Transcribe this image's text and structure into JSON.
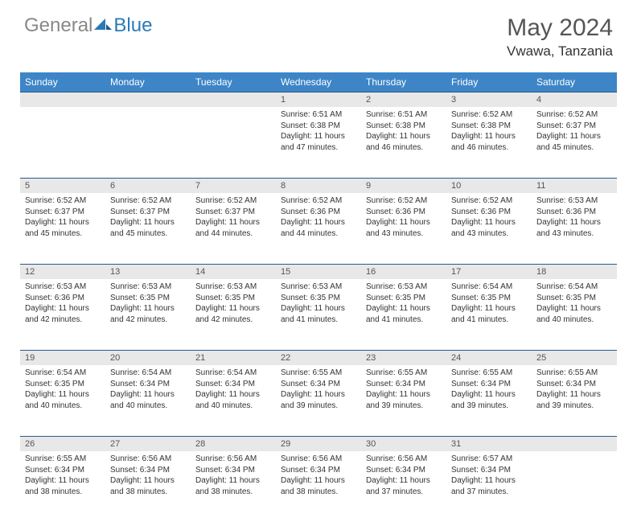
{
  "brand": {
    "part1": "General",
    "part2": "Blue"
  },
  "title": "May 2024",
  "location": "Vwawa, Tanzania",
  "colors": {
    "header_bg": "#3d85c6",
    "header_text": "#ffffff",
    "daynum_bg": "#e8e8e8",
    "border": "#2a5a8a",
    "brand_gray": "#888888",
    "brand_blue": "#2a7ab8"
  },
  "weekdays": [
    "Sunday",
    "Monday",
    "Tuesday",
    "Wednesday",
    "Thursday",
    "Friday",
    "Saturday"
  ],
  "weeks": [
    [
      {
        "n": "",
        "sr": "",
        "ss": "",
        "dl": ""
      },
      {
        "n": "",
        "sr": "",
        "ss": "",
        "dl": ""
      },
      {
        "n": "",
        "sr": "",
        "ss": "",
        "dl": ""
      },
      {
        "n": "1",
        "sr": "Sunrise: 6:51 AM",
        "ss": "Sunset: 6:38 PM",
        "dl": "Daylight: 11 hours and 47 minutes."
      },
      {
        "n": "2",
        "sr": "Sunrise: 6:51 AM",
        "ss": "Sunset: 6:38 PM",
        "dl": "Daylight: 11 hours and 46 minutes."
      },
      {
        "n": "3",
        "sr": "Sunrise: 6:52 AM",
        "ss": "Sunset: 6:38 PM",
        "dl": "Daylight: 11 hours and 46 minutes."
      },
      {
        "n": "4",
        "sr": "Sunrise: 6:52 AM",
        "ss": "Sunset: 6:37 PM",
        "dl": "Daylight: 11 hours and 45 minutes."
      }
    ],
    [
      {
        "n": "5",
        "sr": "Sunrise: 6:52 AM",
        "ss": "Sunset: 6:37 PM",
        "dl": "Daylight: 11 hours and 45 minutes."
      },
      {
        "n": "6",
        "sr": "Sunrise: 6:52 AM",
        "ss": "Sunset: 6:37 PM",
        "dl": "Daylight: 11 hours and 45 minutes."
      },
      {
        "n": "7",
        "sr": "Sunrise: 6:52 AM",
        "ss": "Sunset: 6:37 PM",
        "dl": "Daylight: 11 hours and 44 minutes."
      },
      {
        "n": "8",
        "sr": "Sunrise: 6:52 AM",
        "ss": "Sunset: 6:36 PM",
        "dl": "Daylight: 11 hours and 44 minutes."
      },
      {
        "n": "9",
        "sr": "Sunrise: 6:52 AM",
        "ss": "Sunset: 6:36 PM",
        "dl": "Daylight: 11 hours and 43 minutes."
      },
      {
        "n": "10",
        "sr": "Sunrise: 6:52 AM",
        "ss": "Sunset: 6:36 PM",
        "dl": "Daylight: 11 hours and 43 minutes."
      },
      {
        "n": "11",
        "sr": "Sunrise: 6:53 AM",
        "ss": "Sunset: 6:36 PM",
        "dl": "Daylight: 11 hours and 43 minutes."
      }
    ],
    [
      {
        "n": "12",
        "sr": "Sunrise: 6:53 AM",
        "ss": "Sunset: 6:36 PM",
        "dl": "Daylight: 11 hours and 42 minutes."
      },
      {
        "n": "13",
        "sr": "Sunrise: 6:53 AM",
        "ss": "Sunset: 6:35 PM",
        "dl": "Daylight: 11 hours and 42 minutes."
      },
      {
        "n": "14",
        "sr": "Sunrise: 6:53 AM",
        "ss": "Sunset: 6:35 PM",
        "dl": "Daylight: 11 hours and 42 minutes."
      },
      {
        "n": "15",
        "sr": "Sunrise: 6:53 AM",
        "ss": "Sunset: 6:35 PM",
        "dl": "Daylight: 11 hours and 41 minutes."
      },
      {
        "n": "16",
        "sr": "Sunrise: 6:53 AM",
        "ss": "Sunset: 6:35 PM",
        "dl": "Daylight: 11 hours and 41 minutes."
      },
      {
        "n": "17",
        "sr": "Sunrise: 6:54 AM",
        "ss": "Sunset: 6:35 PM",
        "dl": "Daylight: 11 hours and 41 minutes."
      },
      {
        "n": "18",
        "sr": "Sunrise: 6:54 AM",
        "ss": "Sunset: 6:35 PM",
        "dl": "Daylight: 11 hours and 40 minutes."
      }
    ],
    [
      {
        "n": "19",
        "sr": "Sunrise: 6:54 AM",
        "ss": "Sunset: 6:35 PM",
        "dl": "Daylight: 11 hours and 40 minutes."
      },
      {
        "n": "20",
        "sr": "Sunrise: 6:54 AM",
        "ss": "Sunset: 6:34 PM",
        "dl": "Daylight: 11 hours and 40 minutes."
      },
      {
        "n": "21",
        "sr": "Sunrise: 6:54 AM",
        "ss": "Sunset: 6:34 PM",
        "dl": "Daylight: 11 hours and 40 minutes."
      },
      {
        "n": "22",
        "sr": "Sunrise: 6:55 AM",
        "ss": "Sunset: 6:34 PM",
        "dl": "Daylight: 11 hours and 39 minutes."
      },
      {
        "n": "23",
        "sr": "Sunrise: 6:55 AM",
        "ss": "Sunset: 6:34 PM",
        "dl": "Daylight: 11 hours and 39 minutes."
      },
      {
        "n": "24",
        "sr": "Sunrise: 6:55 AM",
        "ss": "Sunset: 6:34 PM",
        "dl": "Daylight: 11 hours and 39 minutes."
      },
      {
        "n": "25",
        "sr": "Sunrise: 6:55 AM",
        "ss": "Sunset: 6:34 PM",
        "dl": "Daylight: 11 hours and 39 minutes."
      }
    ],
    [
      {
        "n": "26",
        "sr": "Sunrise: 6:55 AM",
        "ss": "Sunset: 6:34 PM",
        "dl": "Daylight: 11 hours and 38 minutes."
      },
      {
        "n": "27",
        "sr": "Sunrise: 6:56 AM",
        "ss": "Sunset: 6:34 PM",
        "dl": "Daylight: 11 hours and 38 minutes."
      },
      {
        "n": "28",
        "sr": "Sunrise: 6:56 AM",
        "ss": "Sunset: 6:34 PM",
        "dl": "Daylight: 11 hours and 38 minutes."
      },
      {
        "n": "29",
        "sr": "Sunrise: 6:56 AM",
        "ss": "Sunset: 6:34 PM",
        "dl": "Daylight: 11 hours and 38 minutes."
      },
      {
        "n": "30",
        "sr": "Sunrise: 6:56 AM",
        "ss": "Sunset: 6:34 PM",
        "dl": "Daylight: 11 hours and 37 minutes."
      },
      {
        "n": "31",
        "sr": "Sunrise: 6:57 AM",
        "ss": "Sunset: 6:34 PM",
        "dl": "Daylight: 11 hours and 37 minutes."
      },
      {
        "n": "",
        "sr": "",
        "ss": "",
        "dl": ""
      }
    ]
  ]
}
